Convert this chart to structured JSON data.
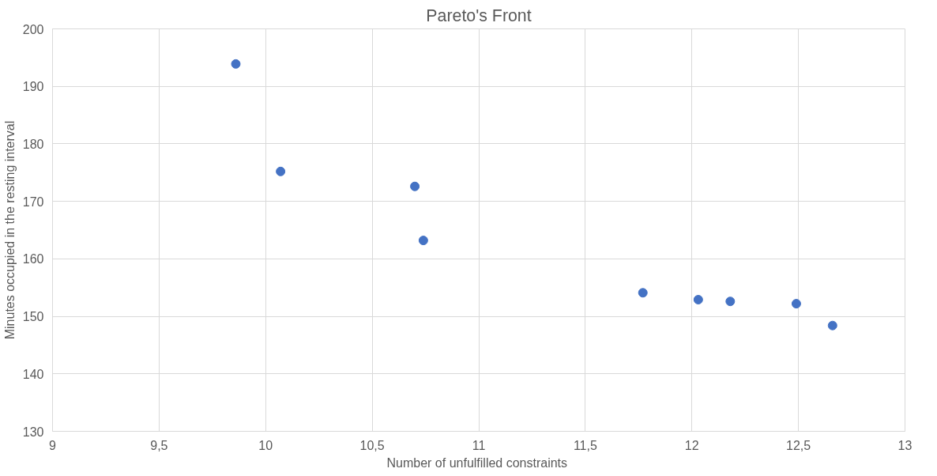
{
  "chart_data": {
    "type": "scatter",
    "title": "Pareto's Front",
    "xlabel": "Number  of unfulfilled constraints",
    "ylabel": "Minutes occupied in the resting interval",
    "x": [
      9.86,
      10.07,
      10.7,
      10.74,
      11.77,
      12.03,
      12.18,
      12.49,
      12.66
    ],
    "series": [
      {
        "color": "#4472c4",
        "values": [
          193.9,
          175.2,
          172.6,
          163.2,
          154.1,
          152.9,
          152.6,
          152.2,
          148.4
        ]
      }
    ],
    "xlim": [
      9,
      13
    ],
    "ylim": [
      130,
      200
    ],
    "xticks": [
      9,
      {
        "value": 9.5,
        "label": "9,5"
      },
      10,
      {
        "value": 10.5,
        "label": "10,5"
      },
      11,
      {
        "value": 11.5,
        "label": "11,5"
      },
      12,
      {
        "value": 12.5,
        "label": "12,5"
      },
      13
    ],
    "yticks": [
      130,
      140,
      150,
      160,
      170,
      180,
      190,
      200
    ],
    "grid": true,
    "marker": "circle"
  }
}
